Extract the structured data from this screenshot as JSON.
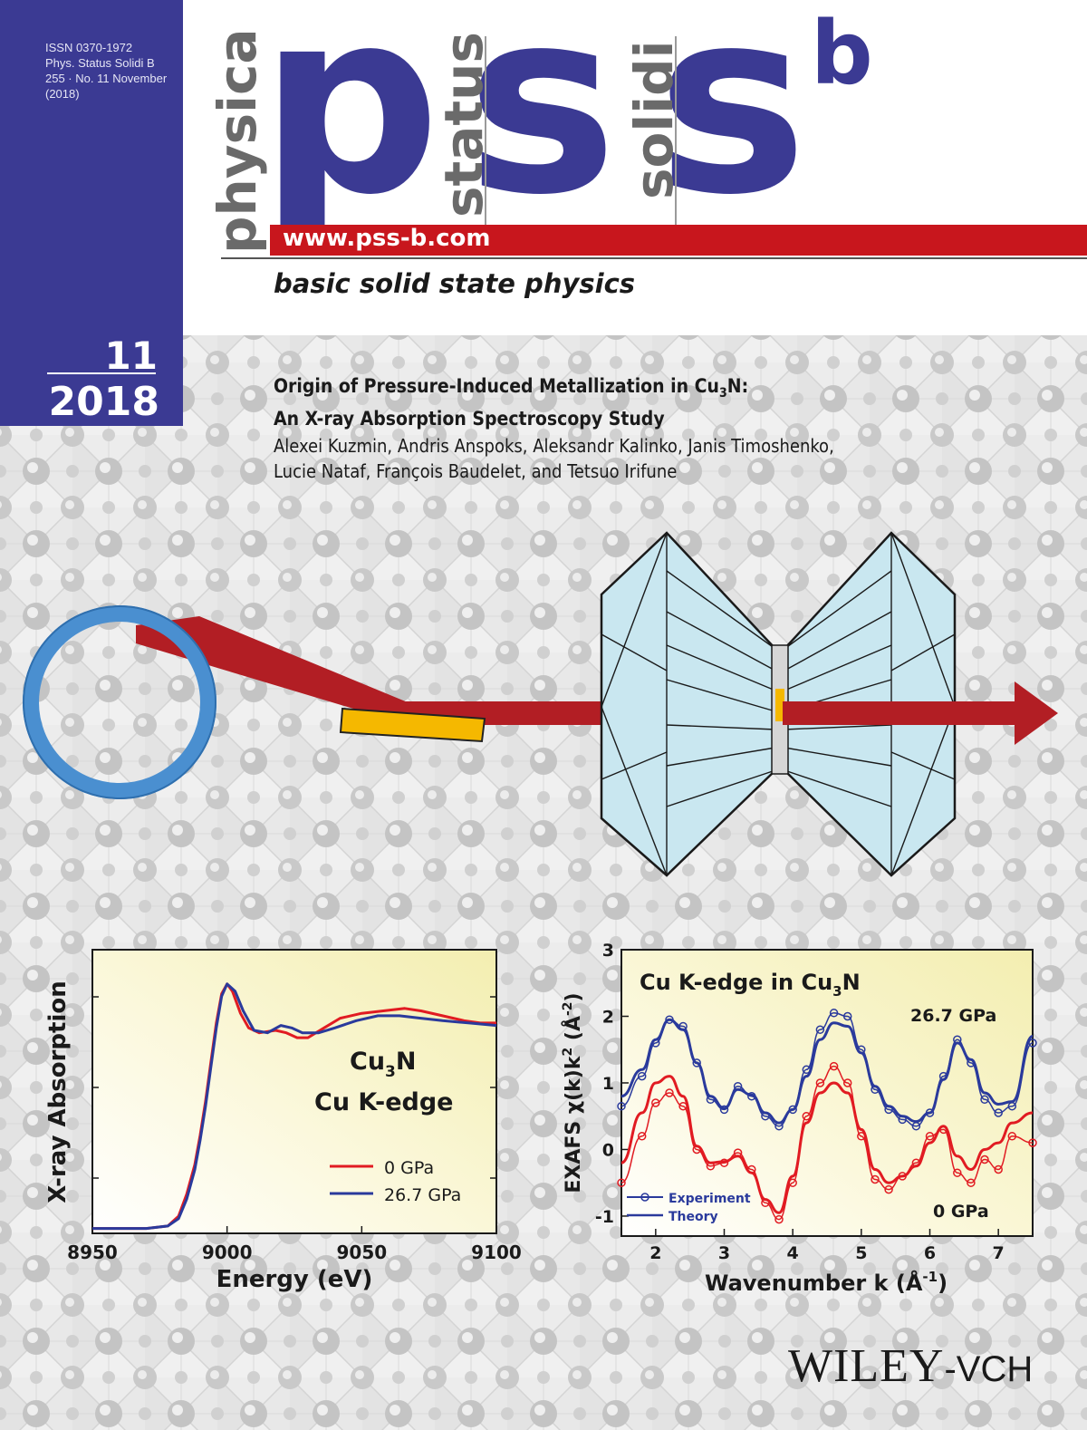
{
  "masthead": {
    "issn": [
      "ISSN 0370-1972",
      "Phys. Status Solidi B",
      "255 · No. 11 November",
      "(2018)"
    ],
    "issue_number": "11",
    "issue_year": "2018",
    "logo_letters": [
      "p",
      "s",
      "s"
    ],
    "logo_superscript": "b",
    "logo_words": [
      "physica",
      "status",
      "solidi"
    ],
    "website": "www.pss-b.com",
    "tagline": "basic solid state physics"
  },
  "article": {
    "title_line1_pre": "Origin of Pressure-Induced Metallization in Cu",
    "title_line1_sub": "3",
    "title_line1_post": "N:",
    "title_line2": "An X-ray Absorption Spectroscopy Study",
    "authors_line1": "Alexei Kuzmin, Andris Anspoks, Aleksandr Kalinko, Janis Timoshenko,",
    "authors_line2": "Lucie Nataf, François Baudelet, and Tetsuo Irifune"
  },
  "publisher": {
    "name": "WILEY",
    "suffix": "-VCH"
  },
  "colors": {
    "masthead_blue": "#3b3a93",
    "red": "#c8161d",
    "blue_series": "#2a3a9c",
    "circle_blue": "#4a8fd0",
    "diamond_fill": "#c9e7f0",
    "sample_orange": "#f5b800"
  },
  "chart_data": [
    {
      "type": "line",
      "title": "",
      "annotation_line1_pre": "Cu",
      "annotation_line1_sub": "3",
      "annotation_line1_post": "N",
      "annotation_line2": "Cu K-edge",
      "xlabel": "Energy (eV)",
      "ylabel": "X-ray Absorption",
      "xlim": [
        8950,
        9100
      ],
      "xticks": [
        "8950",
        "9000",
        "9050",
        "9100"
      ],
      "grid": false,
      "legend": "right-center",
      "series": [
        {
          "name": "0 GPa",
          "color": "#e11b22",
          "x": [
            8950,
            8970,
            8978,
            8982,
            8985,
            8988,
            8990,
            8992,
            8994,
            8996,
            8998,
            9000,
            9002,
            9005,
            9008,
            9012,
            9018,
            9022,
            9026,
            9030,
            9036,
            9042,
            9050,
            9058,
            9066,
            9072,
            9080,
            9088,
            9094,
            9100
          ],
          "y": [
            0.0,
            0.0,
            0.01,
            0.05,
            0.14,
            0.26,
            0.38,
            0.52,
            0.68,
            0.84,
            0.96,
            1.0,
            0.97,
            0.88,
            0.82,
            0.8,
            0.81,
            0.8,
            0.78,
            0.78,
            0.82,
            0.86,
            0.88,
            0.89,
            0.9,
            0.89,
            0.87,
            0.85,
            0.84,
            0.84
          ]
        },
        {
          "name": "26.7 GPa",
          "color": "#2a3a9c",
          "x": [
            8950,
            8970,
            8978,
            8982,
            8985,
            8988,
            8990,
            8992,
            8994,
            8996,
            8998,
            9000,
            9003,
            9006,
            9010,
            9015,
            9020,
            9024,
            9028,
            9034,
            9040,
            9048,
            9056,
            9064,
            9072,
            9080,
            9090,
            9100
          ],
          "y": [
            0.0,
            0.0,
            0.01,
            0.04,
            0.12,
            0.24,
            0.36,
            0.5,
            0.66,
            0.82,
            0.95,
            1.0,
            0.97,
            0.89,
            0.81,
            0.8,
            0.83,
            0.82,
            0.8,
            0.8,
            0.82,
            0.85,
            0.87,
            0.87,
            0.86,
            0.85,
            0.84,
            0.83
          ]
        }
      ]
    },
    {
      "type": "line",
      "title_pre": "Cu K-edge in Cu",
      "title_sub": "3",
      "title_post": "N",
      "xlabel_pre": "Wavenumber k (Å",
      "xlabel_sup": "-1",
      "xlabel_post": ")",
      "ylabel_pre": "EXAFS χ(k)k",
      "ylabel_sup": "2",
      "ylabel_mid": " (Å",
      "ylabel_sup2": "-2",
      "ylabel_post": ")",
      "xlim": [
        1.5,
        7.5
      ],
      "ylim": [
        -1.3,
        3
      ],
      "xticks": [
        "2",
        "3",
        "4",
        "5",
        "6",
        "7"
      ],
      "yticks": [
        "-1",
        "0",
        "1",
        "2",
        "3"
      ],
      "pressure_labels": [
        "26.7 GPa",
        "0 GPa"
      ],
      "legend": "bottom-left",
      "legend_entries": [
        "Experiment",
        "Theory"
      ],
      "grid": false,
      "series": [
        {
          "name": "26.7 GPa",
          "color": "#2a3a9c",
          "x": [
            1.5,
            1.8,
            2.0,
            2.2,
            2.4,
            2.6,
            2.8,
            3.0,
            3.2,
            3.4,
            3.6,
            3.8,
            4.0,
            4.2,
            4.4,
            4.6,
            4.8,
            5.0,
            5.2,
            5.4,
            5.6,
            5.8,
            6.0,
            6.2,
            6.4,
            6.6,
            6.8,
            7.0,
            7.2,
            7.5
          ],
          "experiment": [
            0.65,
            1.1,
            1.6,
            1.95,
            1.85,
            1.3,
            0.75,
            0.6,
            0.95,
            0.8,
            0.5,
            0.35,
            0.6,
            1.2,
            1.8,
            2.05,
            2.0,
            1.5,
            0.9,
            0.6,
            0.45,
            0.35,
            0.55,
            1.1,
            1.65,
            1.3,
            0.75,
            0.55,
            0.65,
            1.6
          ],
          "theory": [
            0.8,
            1.2,
            1.65,
            1.95,
            1.8,
            1.3,
            0.8,
            0.62,
            0.9,
            0.82,
            0.55,
            0.4,
            0.6,
            1.1,
            1.65,
            1.9,
            1.85,
            1.45,
            0.95,
            0.65,
            0.5,
            0.42,
            0.55,
            1.05,
            1.6,
            1.35,
            0.85,
            0.68,
            0.72,
            1.7
          ]
        },
        {
          "name": "0 GPa",
          "color": "#e11b22",
          "x": [
            1.5,
            1.8,
            2.0,
            2.2,
            2.4,
            2.6,
            2.8,
            3.0,
            3.2,
            3.4,
            3.6,
            3.8,
            4.0,
            4.2,
            4.4,
            4.6,
            4.8,
            5.0,
            5.2,
            5.4,
            5.6,
            5.8,
            6.0,
            6.2,
            6.4,
            6.6,
            6.8,
            7.0,
            7.2,
            7.5
          ],
          "experiment": [
            -0.5,
            0.2,
            0.7,
            0.85,
            0.65,
            0.0,
            -0.25,
            -0.2,
            -0.05,
            -0.3,
            -0.8,
            -1.05,
            -0.5,
            0.5,
            1.0,
            1.25,
            1.0,
            0.2,
            -0.45,
            -0.6,
            -0.4,
            -0.2,
            0.2,
            0.3,
            -0.35,
            -0.5,
            -0.15,
            -0.3,
            0.2,
            0.1
          ],
          "theory": [
            -0.2,
            0.55,
            1.0,
            1.1,
            0.8,
            0.05,
            -0.2,
            -0.18,
            -0.1,
            -0.35,
            -0.75,
            -0.95,
            -0.4,
            0.4,
            0.85,
            1.0,
            0.85,
            0.3,
            -0.3,
            -0.5,
            -0.4,
            -0.25,
            0.1,
            0.35,
            -0.1,
            -0.3,
            0.0,
            0.1,
            0.4,
            0.55
          ]
        }
      ]
    }
  ]
}
